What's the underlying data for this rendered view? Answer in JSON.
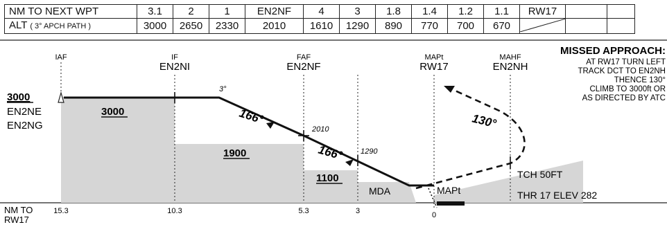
{
  "table": {
    "dist_label": "NM TO NEXT WPT",
    "alt_label": "ALT",
    "alt_sub": "( 3° APCH PATH )",
    "dist_cells": [
      "3.1",
      "2",
      "1",
      "EN2NF",
      "4",
      "3",
      "1.8",
      "1.4",
      "1.2",
      "1.1",
      "RW17",
      "",
      ""
    ],
    "alt_cells": [
      "3000",
      "2650",
      "2330",
      "2010",
      "1610",
      "1290",
      "890",
      "770",
      "700",
      "670",
      "",
      "",
      ""
    ]
  },
  "fixes": {
    "iaf": "IAF",
    "if_type": "IF",
    "if_name": "EN2NI",
    "faf_type": "FAF",
    "faf_name": "EN2NF",
    "map_type": "MAPt",
    "map_name": "RW17",
    "mahf_type": "MAHF",
    "mahf_name": "EN2NH"
  },
  "missed": {
    "title": "MISSED APPROACH:",
    "lines": [
      "AT RW17 TURN LEFT",
      "TRACK DCT TO EN2NH",
      "THENCE 130°",
      "CLIMB TO 3000ft OR",
      "AS DIRECTED BY ATC"
    ]
  },
  "profile": {
    "iaf_alt": "3000",
    "iaf_names": [
      "EN2NE",
      "EN2NG"
    ],
    "glide_angle": "3°",
    "track_in": "166°",
    "track_final": "166°",
    "track_missed": "130°",
    "faf_alt": "2010",
    "step_alt": "1290",
    "msa_seg1": "3000",
    "msa_seg2": "1900",
    "msa_seg3": "1100",
    "mda_label": "MDA",
    "map_label": "MAPt",
    "tch": "TCH 50FT",
    "thr_elev": "THR 17 ELEV 282"
  },
  "axis": {
    "label_lines": [
      "NM TO",
      "RW17"
    ],
    "ticks": [
      "15.3",
      "10.3",
      "5.3",
      "3",
      "0"
    ]
  }
}
